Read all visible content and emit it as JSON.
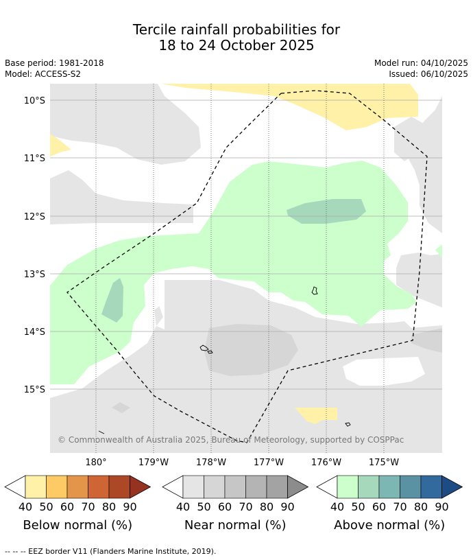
{
  "header": {
    "title_line1": "Tercile rainfall probabilities for",
    "title_line2": "18 to 24 October 2025",
    "base_period": "Base period: 1981-2018",
    "model": "Model: ACCESS-S2",
    "model_run": "Model run: 04/10/2025",
    "issued": "Issued: 06/10/2025"
  },
  "map": {
    "lat_labels": [
      "10°S",
      "11°S",
      "12°S",
      "13°S",
      "14°S",
      "15°S"
    ],
    "lon_labels": [
      "180°",
      "179°W",
      "178°W",
      "177°W",
      "176°W",
      "175°W"
    ],
    "credit": "© Commonwealth of Australia 2025, Bureau of Meteorology, supported by COSPPac"
  },
  "legend": {
    "ticks": [
      "40",
      "50",
      "60",
      "70",
      "80",
      "90"
    ],
    "below": {
      "label": "Below normal (%)",
      "colors": [
        "#fff1a8",
        "#fdca65",
        "#e3954a",
        "#cf6434",
        "#ad4826",
        "#963320"
      ]
    },
    "near": {
      "label": "Near normal (%)",
      "colors": [
        "#e5e5e5",
        "#d6d6d6",
        "#c6c6c6",
        "#b4b4b4",
        "#a3a3a3",
        "#8c8c8c"
      ]
    },
    "above": {
      "label": "Above normal (%)",
      "colors": [
        "#ccffcc",
        "#a6d8bc",
        "#7db7b3",
        "#5b92a3",
        "#336a9d",
        "#1d4c84"
      ]
    }
  },
  "footer": {
    "eez_note": "--  --  -- EEZ border V11 (Flanders Marine Institute, 2019)."
  }
}
